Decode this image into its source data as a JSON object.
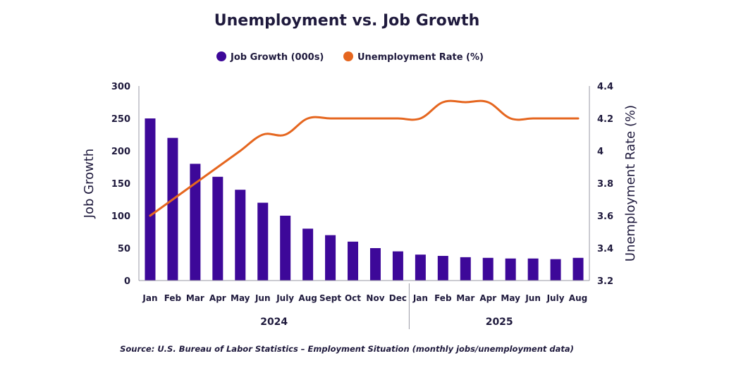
{
  "chart_data": {
    "type": "bar",
    "title": "Unemployment vs. Job Growth",
    "categories": [
      "Jan",
      "Feb",
      "Mar",
      "Apr",
      "May",
      "Jun",
      "July",
      "Aug",
      "Sept",
      "Oct",
      "Nov",
      "Dec",
      "Jan",
      "Feb",
      "Mar",
      "Apr",
      "May",
      "Jun",
      "July",
      "Aug"
    ],
    "year_groups": [
      {
        "label": "2024",
        "count": 12
      },
      {
        "label": "2025",
        "count": 8
      }
    ],
    "series": [
      {
        "name": "Job Growth (000s)",
        "kind": "bar",
        "axis": "left",
        "color": "#3d0899",
        "values": [
          250,
          220,
          180,
          160,
          140,
          120,
          100,
          80,
          70,
          60,
          50,
          45,
          40,
          38,
          36,
          35,
          34,
          34,
          33,
          35
        ]
      },
      {
        "name": "Unemployment Rate (%)",
        "kind": "line",
        "axis": "right",
        "color": "#e5661f",
        "values": [
          3.6,
          3.7,
          3.8,
          3.9,
          4.0,
          4.1,
          4.1,
          4.2,
          4.2,
          4.2,
          4.2,
          4.2,
          4.2,
          4.3,
          4.3,
          4.3,
          4.2,
          4.2,
          4.2,
          4.2
        ]
      }
    ],
    "ylabel": "Job Growth",
    "y2label": "Unemployment Rate (%)",
    "ylim": [
      0,
      300
    ],
    "yticks": [
      "0",
      "50",
      "100",
      "150",
      "200",
      "250",
      "300"
    ],
    "y2lim": [
      3.2,
      4.4
    ],
    "y2ticks": [
      "3.2",
      "3.4",
      "3.6",
      "3.8",
      "4",
      "4.2",
      "4.4"
    ],
    "legend_position": "top-center",
    "grid": false,
    "source": "Source: U.S. Bureau of Labor Statistics – Employment Situation (monthly jobs/unemployment data)"
  }
}
